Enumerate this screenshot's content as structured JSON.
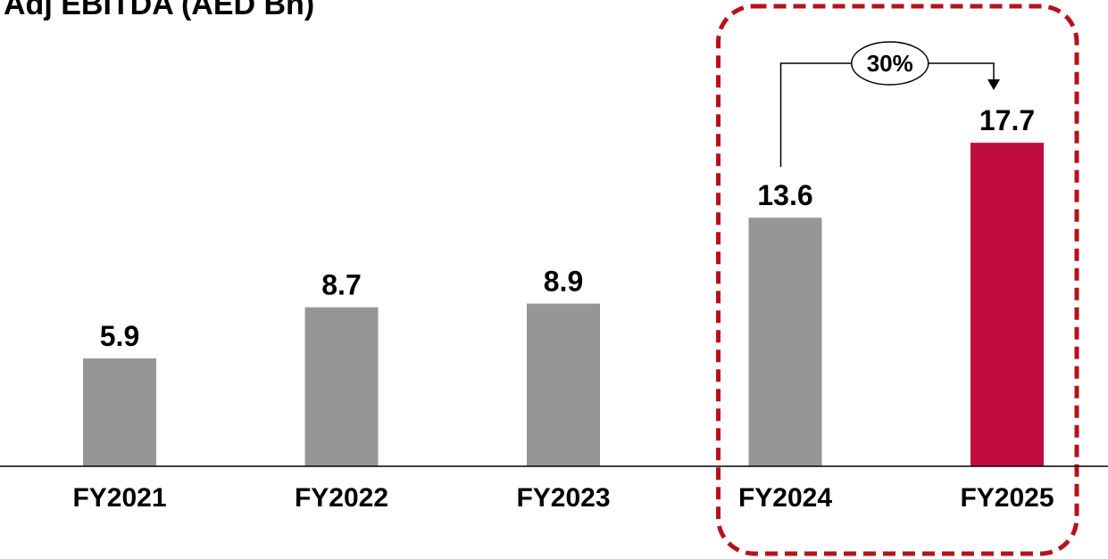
{
  "chart_data": {
    "type": "bar",
    "title": "Adj EBITDA (AED Bn)",
    "categories": [
      "FY2021",
      "FY2022",
      "FY2023",
      "FY2024",
      "FY2025"
    ],
    "values": [
      5.9,
      8.7,
      8.9,
      13.6,
      17.7
    ],
    "value_labels": [
      "5.9",
      "8.7",
      "8.9",
      "13.6",
      "17.7"
    ],
    "bar_colors": [
      "#969696",
      "#969696",
      "#969696",
      "#969696",
      "#C00C3F"
    ],
    "ylim": [
      0,
      22.0
    ],
    "grid": false,
    "legend": "none",
    "annotations": {
      "growth_label": "30%",
      "growth_from": "FY2024",
      "growth_to": "FY2025",
      "highlight_categories": [
        "FY2024",
        "FY2025"
      ],
      "highlight_color": "#B5121B"
    }
  }
}
